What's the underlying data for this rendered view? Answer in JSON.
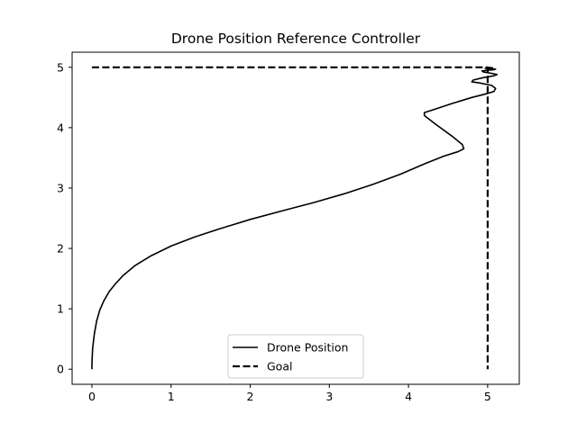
{
  "chart_data": {
    "type": "line",
    "title": "Drone Position Reference Controller",
    "xlabel": "",
    "ylabel": "",
    "xlim": [
      -0.25,
      5.4
    ],
    "ylim": [
      -0.25,
      5.25
    ],
    "xticks": [
      0,
      1,
      2,
      3,
      4,
      5
    ],
    "yticks": [
      0,
      1,
      2,
      3,
      4,
      5
    ],
    "grid": false,
    "legend_position": "lower center",
    "series": [
      {
        "name": "Drone Position",
        "style": "solid",
        "color": "#000000",
        "x": [
          0,
          0.002,
          0.01,
          0.03,
          0.06,
          0.1,
          0.15,
          0.22,
          0.3,
          0.4,
          0.55,
          0.75,
          1.0,
          1.3,
          1.6,
          2.0,
          2.4,
          2.8,
          3.2,
          3.55,
          3.9,
          4.2,
          4.45,
          4.62,
          4.7,
          4.68,
          4.55,
          4.35,
          4.2,
          4.2,
          4.32,
          4.55,
          4.8,
          4.98,
          5.08,
          5.1,
          5.05,
          4.9,
          4.8,
          4.82,
          4.95,
          5.08,
          5.12,
          5.05,
          4.95,
          4.93,
          5.0,
          5.08,
          5.1,
          5.04,
          4.98,
          4.97,
          5.02,
          5.06,
          5.05,
          5.0,
          4.98,
          5.0,
          5.02,
          5.0
        ],
        "y": [
          0,
          0.15,
          0.35,
          0.58,
          0.8,
          0.98,
          1.13,
          1.29,
          1.42,
          1.56,
          1.72,
          1.88,
          2.04,
          2.19,
          2.32,
          2.48,
          2.62,
          2.76,
          2.91,
          3.06,
          3.23,
          3.4,
          3.53,
          3.6,
          3.65,
          3.72,
          3.86,
          4.05,
          4.2,
          4.25,
          4.3,
          4.4,
          4.5,
          4.56,
          4.6,
          4.65,
          4.7,
          4.74,
          4.76,
          4.79,
          4.83,
          4.86,
          4.88,
          4.9,
          4.92,
          4.94,
          4.95,
          4.96,
          4.97,
          4.975,
          4.98,
          4.985,
          4.99,
          4.992,
          4.994,
          4.996,
          4.997,
          4.998,
          4.999,
          5.0
        ]
      },
      {
        "name": "Goal",
        "style": "dashed",
        "color": "#000000",
        "x": [
          0,
          5,
          5
        ],
        "y": [
          5,
          5,
          0
        ]
      }
    ]
  }
}
